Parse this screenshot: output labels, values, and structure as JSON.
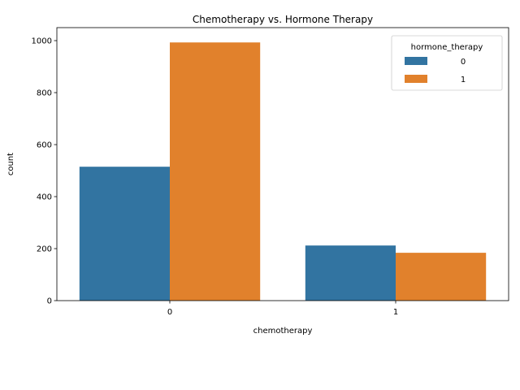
{
  "chart_data": {
    "type": "bar",
    "title": "Chemotherapy vs. Hormone Therapy",
    "xlabel": "chemotherapy",
    "ylabel": "count",
    "categories": [
      "0",
      "1"
    ],
    "series": [
      {
        "name": "0",
        "values": [
          515,
          212
        ],
        "color": "#3274a1"
      },
      {
        "name": "1",
        "values": [
          993,
          184
        ],
        "color": "#e1812c"
      }
    ],
    "ylim": [
      0,
      1050
    ],
    "yticks": [
      0,
      200,
      400,
      600,
      800,
      1000
    ],
    "legend": {
      "title": "hormone_therapy",
      "placement": "top-right"
    },
    "grid": false
  }
}
